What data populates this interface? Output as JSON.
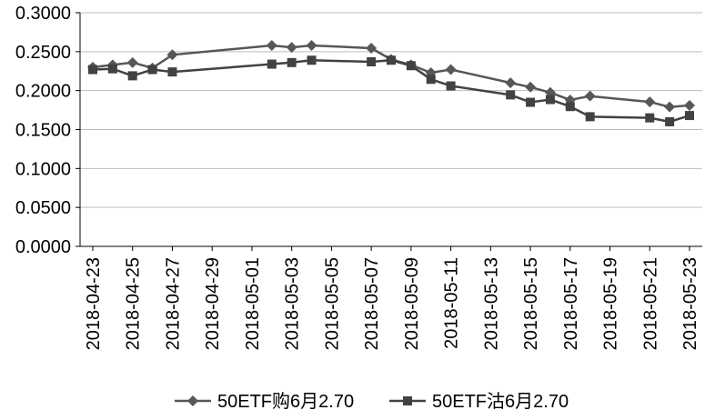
{
  "chart_data": {
    "type": "line",
    "title": "",
    "grid": true,
    "legend_position": "bottom",
    "x_axis": {
      "start": "2018-04-23",
      "end": "2018-05-23",
      "tick_labels": [
        "2018-04-23",
        "2018-04-25",
        "2018-04-27",
        "2018-04-29",
        "2018-05-01",
        "2018-05-03",
        "2018-05-05",
        "2018-05-07",
        "2018-05-09",
        "2018-05-11",
        "2018-05-13",
        "2018-05-15",
        "2018-05-17",
        "2018-05-19",
        "2018-05-21",
        "2018-05-23"
      ]
    },
    "y_axis": {
      "min": 0.0,
      "max": 0.3,
      "step": 0.05,
      "tick_labels": [
        "0.0000",
        "0.0500",
        "0.1000",
        "0.1500",
        "0.2000",
        "0.2500",
        "0.3000"
      ]
    },
    "dates": [
      "2018-04-23",
      "2018-04-24",
      "2018-04-25",
      "2018-04-26",
      "2018-04-27",
      "2018-05-02",
      "2018-05-03",
      "2018-05-04",
      "2018-05-07",
      "2018-05-08",
      "2018-05-09",
      "2018-05-10",
      "2018-05-11",
      "2018-05-14",
      "2018-05-15",
      "2018-05-16",
      "2018-05-17",
      "2018-05-18",
      "2018-05-21",
      "2018-05-22",
      "2018-05-23"
    ],
    "series": [
      {
        "name": "50ETF购6月2.70",
        "marker": "diamond",
        "color": "#575757",
        "values": [
          0.23,
          0.233,
          0.236,
          0.229,
          0.246,
          0.258,
          0.2555,
          0.258,
          0.2545,
          0.24,
          0.233,
          0.223,
          0.227,
          0.21,
          0.2045,
          0.1975,
          0.188,
          0.193,
          0.1855,
          0.179,
          0.181
        ]
      },
      {
        "name": "50ETF沽6月2.70",
        "marker": "square",
        "color": "#424242",
        "values": [
          0.227,
          0.228,
          0.219,
          0.227,
          0.224,
          0.234,
          0.236,
          0.239,
          0.237,
          0.239,
          0.232,
          0.2145,
          0.206,
          0.1945,
          0.185,
          0.1885,
          0.1795,
          0.1665,
          0.165,
          0.16,
          0.168
        ]
      }
    ]
  },
  "colors": {
    "background": "#ffffff",
    "axis": "#000000",
    "gridline": "#bdbdbd",
    "text": "#000000"
  }
}
